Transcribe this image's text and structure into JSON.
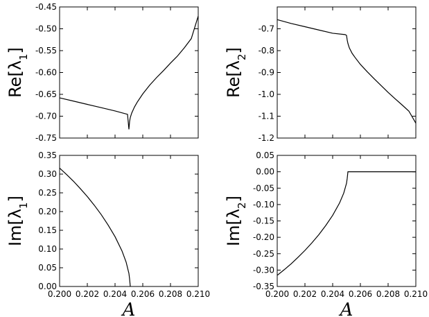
{
  "chart_data": [
    {
      "type": "line",
      "ylabel": "Re[λ₁]",
      "ylabel_main": "Re[λ",
      "ylabel_sub": "1",
      "ylabel_tail": "]",
      "xlabel": "",
      "xlim": [
        0.2,
        0.21
      ],
      "ylim": [
        -0.75,
        -0.45
      ],
      "yticks": [
        "-0.45",
        "-0.50",
        "-0.55",
        "-0.60",
        "-0.65",
        "-0.70",
        "-0.75"
      ],
      "ytick_values": [
        -0.45,
        -0.5,
        -0.55,
        -0.6,
        -0.65,
        -0.7,
        -0.75
      ],
      "show_xticklabels": false,
      "series": [
        {
          "x": [
            0.2,
            0.201,
            0.202,
            0.203,
            0.204,
            0.2049,
            0.205,
            0.20505,
            0.2051,
            0.2052,
            0.2054,
            0.2056,
            0.206,
            0.2065,
            0.207,
            0.2075,
            0.208,
            0.2085,
            0.209,
            0.2095,
            0.21
          ],
          "y": [
            -0.658,
            -0.6655,
            -0.673,
            -0.6805,
            -0.688,
            -0.6958,
            -0.73,
            -0.712,
            -0.703,
            -0.693,
            -0.679,
            -0.668,
            -0.649,
            -0.629,
            -0.6115,
            -0.5955,
            -0.5785,
            -0.5625,
            -0.5435,
            -0.5225,
            -0.471
          ]
        }
      ]
    },
    {
      "type": "line",
      "ylabel": "Re[λ₂]",
      "ylabel_main": "Re[λ",
      "ylabel_sub": "2",
      "ylabel_tail": "]",
      "xlabel": "",
      "xlim": [
        0.2,
        0.21
      ],
      "ylim": [
        -1.2,
        -0.6
      ],
      "yticks": [
        "-0.7",
        "-0.8",
        "-0.9",
        "-1.0",
        "-1.1",
        "-1.2"
      ],
      "ytick_values": [
        -0.7,
        -0.8,
        -0.9,
        -1.0,
        -1.1,
        -1.2
      ],
      "show_xticklabels": false,
      "series": [
        {
          "x": [
            0.2,
            0.201,
            0.202,
            0.203,
            0.204,
            0.2049,
            0.205,
            0.20505,
            0.2051,
            0.2052,
            0.2054,
            0.2056,
            0.206,
            0.2065,
            0.207,
            0.2075,
            0.208,
            0.2085,
            0.209,
            0.2095,
            0.21
          ],
          "y": [
            -0.658,
            -0.6755,
            -0.6905,
            -0.7055,
            -0.7205,
            -0.7265,
            -0.73,
            -0.752,
            -0.767,
            -0.787,
            -0.812,
            -0.83,
            -0.863,
            -0.897,
            -0.929,
            -0.96,
            -0.991,
            -1.02,
            -1.048,
            -1.077,
            -1.132
          ]
        }
      ]
    },
    {
      "type": "line",
      "ylabel": "Im[λ₁]",
      "ylabel_main": "Im[λ",
      "ylabel_sub": "1",
      "ylabel_tail": "]",
      "xlabel": "A",
      "xlim": [
        0.2,
        0.21
      ],
      "ylim": [
        0.0,
        0.35
      ],
      "yticks": [
        "0.35",
        "0.30",
        "0.25",
        "0.20",
        "0.15",
        "0.10",
        "0.05",
        "0.00"
      ],
      "ytick_values": [
        0.35,
        0.3,
        0.25,
        0.2,
        0.15,
        0.1,
        0.05,
        0.0
      ],
      "xticks": [
        "0.200",
        "0.202",
        "0.204",
        "0.206",
        "0.208",
        "0.210"
      ],
      "xtick_values": [
        0.2,
        0.202,
        0.204,
        0.206,
        0.208,
        0.21
      ],
      "show_xticklabels": true,
      "series": [
        {
          "x": [
            0.2,
            0.2005,
            0.201,
            0.2015,
            0.202,
            0.2025,
            0.203,
            0.2035,
            0.204,
            0.2045,
            0.2048,
            0.205,
            0.20505,
            0.2051
          ],
          "y": [
            0.316,
            0.299,
            0.281,
            0.261,
            0.24,
            0.217,
            0.192,
            0.164,
            0.133,
            0.095,
            0.065,
            0.035,
            0.02,
            0.0
          ]
        }
      ]
    },
    {
      "type": "line",
      "ylabel": "Im[λ₂]",
      "ylabel_main": "Im[λ",
      "ylabel_sub": "2",
      "ylabel_tail": "]",
      "xlabel": "A",
      "xlim": [
        0.2,
        0.21
      ],
      "ylim": [
        -0.35,
        0.05
      ],
      "yticks": [
        "0.05",
        "0.00",
        "-0.05",
        "-0.10",
        "-0.15",
        "-0.20",
        "-0.25",
        "-0.30",
        "-0.35"
      ],
      "ytick_values": [
        0.05,
        0.0,
        -0.05,
        -0.1,
        -0.15,
        -0.2,
        -0.25,
        -0.3,
        -0.35
      ],
      "xticks": [
        "0.200",
        "0.202",
        "0.204",
        "0.206",
        "0.208",
        "0.210"
      ],
      "xtick_values": [
        0.2,
        0.202,
        0.204,
        0.206,
        0.208,
        0.21
      ],
      "show_xticklabels": true,
      "series": [
        {
          "x": [
            0.2,
            0.2005,
            0.201,
            0.2015,
            0.202,
            0.2025,
            0.203,
            0.2035,
            0.204,
            0.2045,
            0.2048,
            0.205,
            0.20505,
            0.2051,
            0.2055,
            0.206,
            0.207,
            0.208,
            0.209,
            0.21
          ],
          "y": [
            -0.316,
            -0.299,
            -0.281,
            -0.261,
            -0.24,
            -0.217,
            -0.192,
            -0.164,
            -0.133,
            -0.095,
            -0.065,
            -0.035,
            -0.02,
            0.0,
            0.0,
            0.0,
            0.0,
            0.0,
            0.0,
            0.0
          ]
        }
      ]
    }
  ]
}
